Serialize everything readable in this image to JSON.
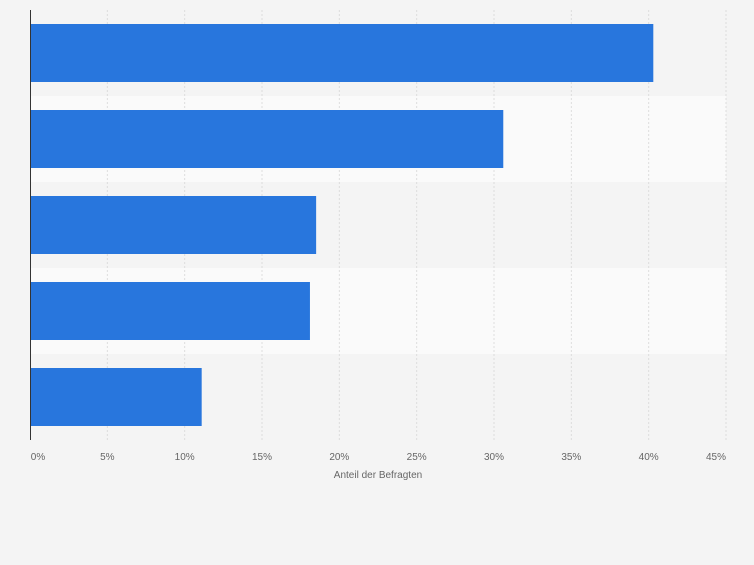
{
  "chart_data": {
    "type": "bar",
    "orientation": "horizontal",
    "categories": [
      "",
      "",
      "",
      "",
      ""
    ],
    "values": [
      40.3,
      30.6,
      18.5,
      18.1,
      11.1
    ],
    "xlabel": "Anteil der Befragten",
    "ylabel": "",
    "xlim": [
      0,
      45
    ],
    "ticks": [
      0,
      5,
      10,
      15,
      20,
      25,
      30,
      35,
      40,
      45
    ],
    "tick_labels": [
      "0%",
      "5%",
      "10%",
      "15%",
      "20%",
      "25%",
      "30%",
      "35%",
      "40%",
      "45%"
    ],
    "grid": true,
    "legend": "none",
    "bar_color": "#2876dd",
    "band_colors": [
      "#f4f4f4",
      "#fafafa"
    ],
    "gridline_color": "#dddddd",
    "axis_color": "#333333"
  }
}
